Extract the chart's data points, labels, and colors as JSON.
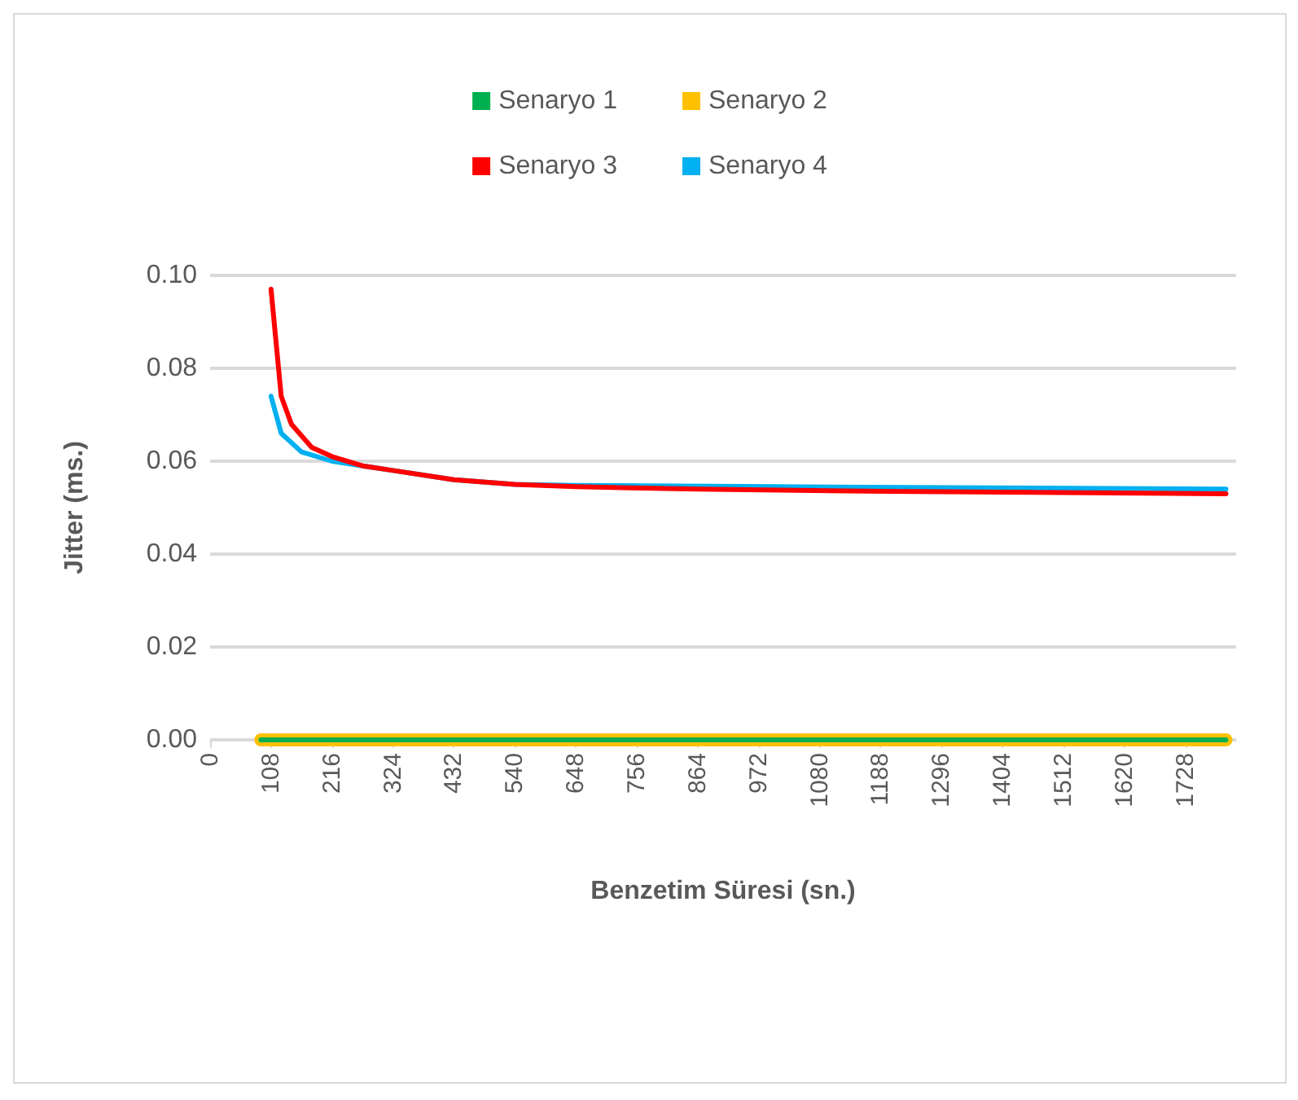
{
  "chart_data": {
    "type": "line",
    "xlabel": "Benzetim Süresi (sn.)",
    "ylabel": "Jitter (ms.)",
    "xlim": [
      0,
      1818
    ],
    "xticks": [
      0,
      108,
      216,
      324,
      432,
      540,
      648,
      756,
      864,
      972,
      1080,
      1188,
      1296,
      1404,
      1512,
      1620,
      1728
    ],
    "ylim": [
      0,
      0.1
    ],
    "yticks": [
      {
        "value": 0,
        "label": "0.00"
      },
      0.02,
      0.04,
      0.06,
      0.08,
      {
        "value": 0.1,
        "label": "0.10"
      }
    ],
    "grid": "y",
    "legend": "top",
    "marker": "none",
    "line_style": "solid",
    "series": [
      {
        "name": "Senaryo 1",
        "color": "#00b050",
        "x": [
          90,
          1800
        ],
        "values": [
          0,
          0
        ]
      },
      {
        "name": "Senaryo 2",
        "color": "#ffc000",
        "x": [
          90,
          1800
        ],
        "values": [
          0,
          0
        ]
      },
      {
        "name": "Senaryo 3",
        "color": "#ff0000",
        "x": [
          108,
          126,
          144,
          180,
          216,
          270,
          324,
          432,
          540,
          648,
          864,
          1200,
          1800
        ],
        "values": [
          0.097,
          0.074,
          0.068,
          0.063,
          0.061,
          0.059,
          0.058,
          0.056,
          0.055,
          0.0545,
          0.054,
          0.0535,
          0.053
        ]
      },
      {
        "name": "Senaryo 4",
        "color": "#00b0f0",
        "x": [
          108,
          126,
          162,
          216,
          270,
          324,
          432,
          540,
          648,
          1000,
          1800
        ],
        "values": [
          0.074,
          0.066,
          0.062,
          0.06,
          0.059,
          0.058,
          0.056,
          0.055,
          0.0548,
          0.0545,
          0.054
        ]
      }
    ]
  }
}
